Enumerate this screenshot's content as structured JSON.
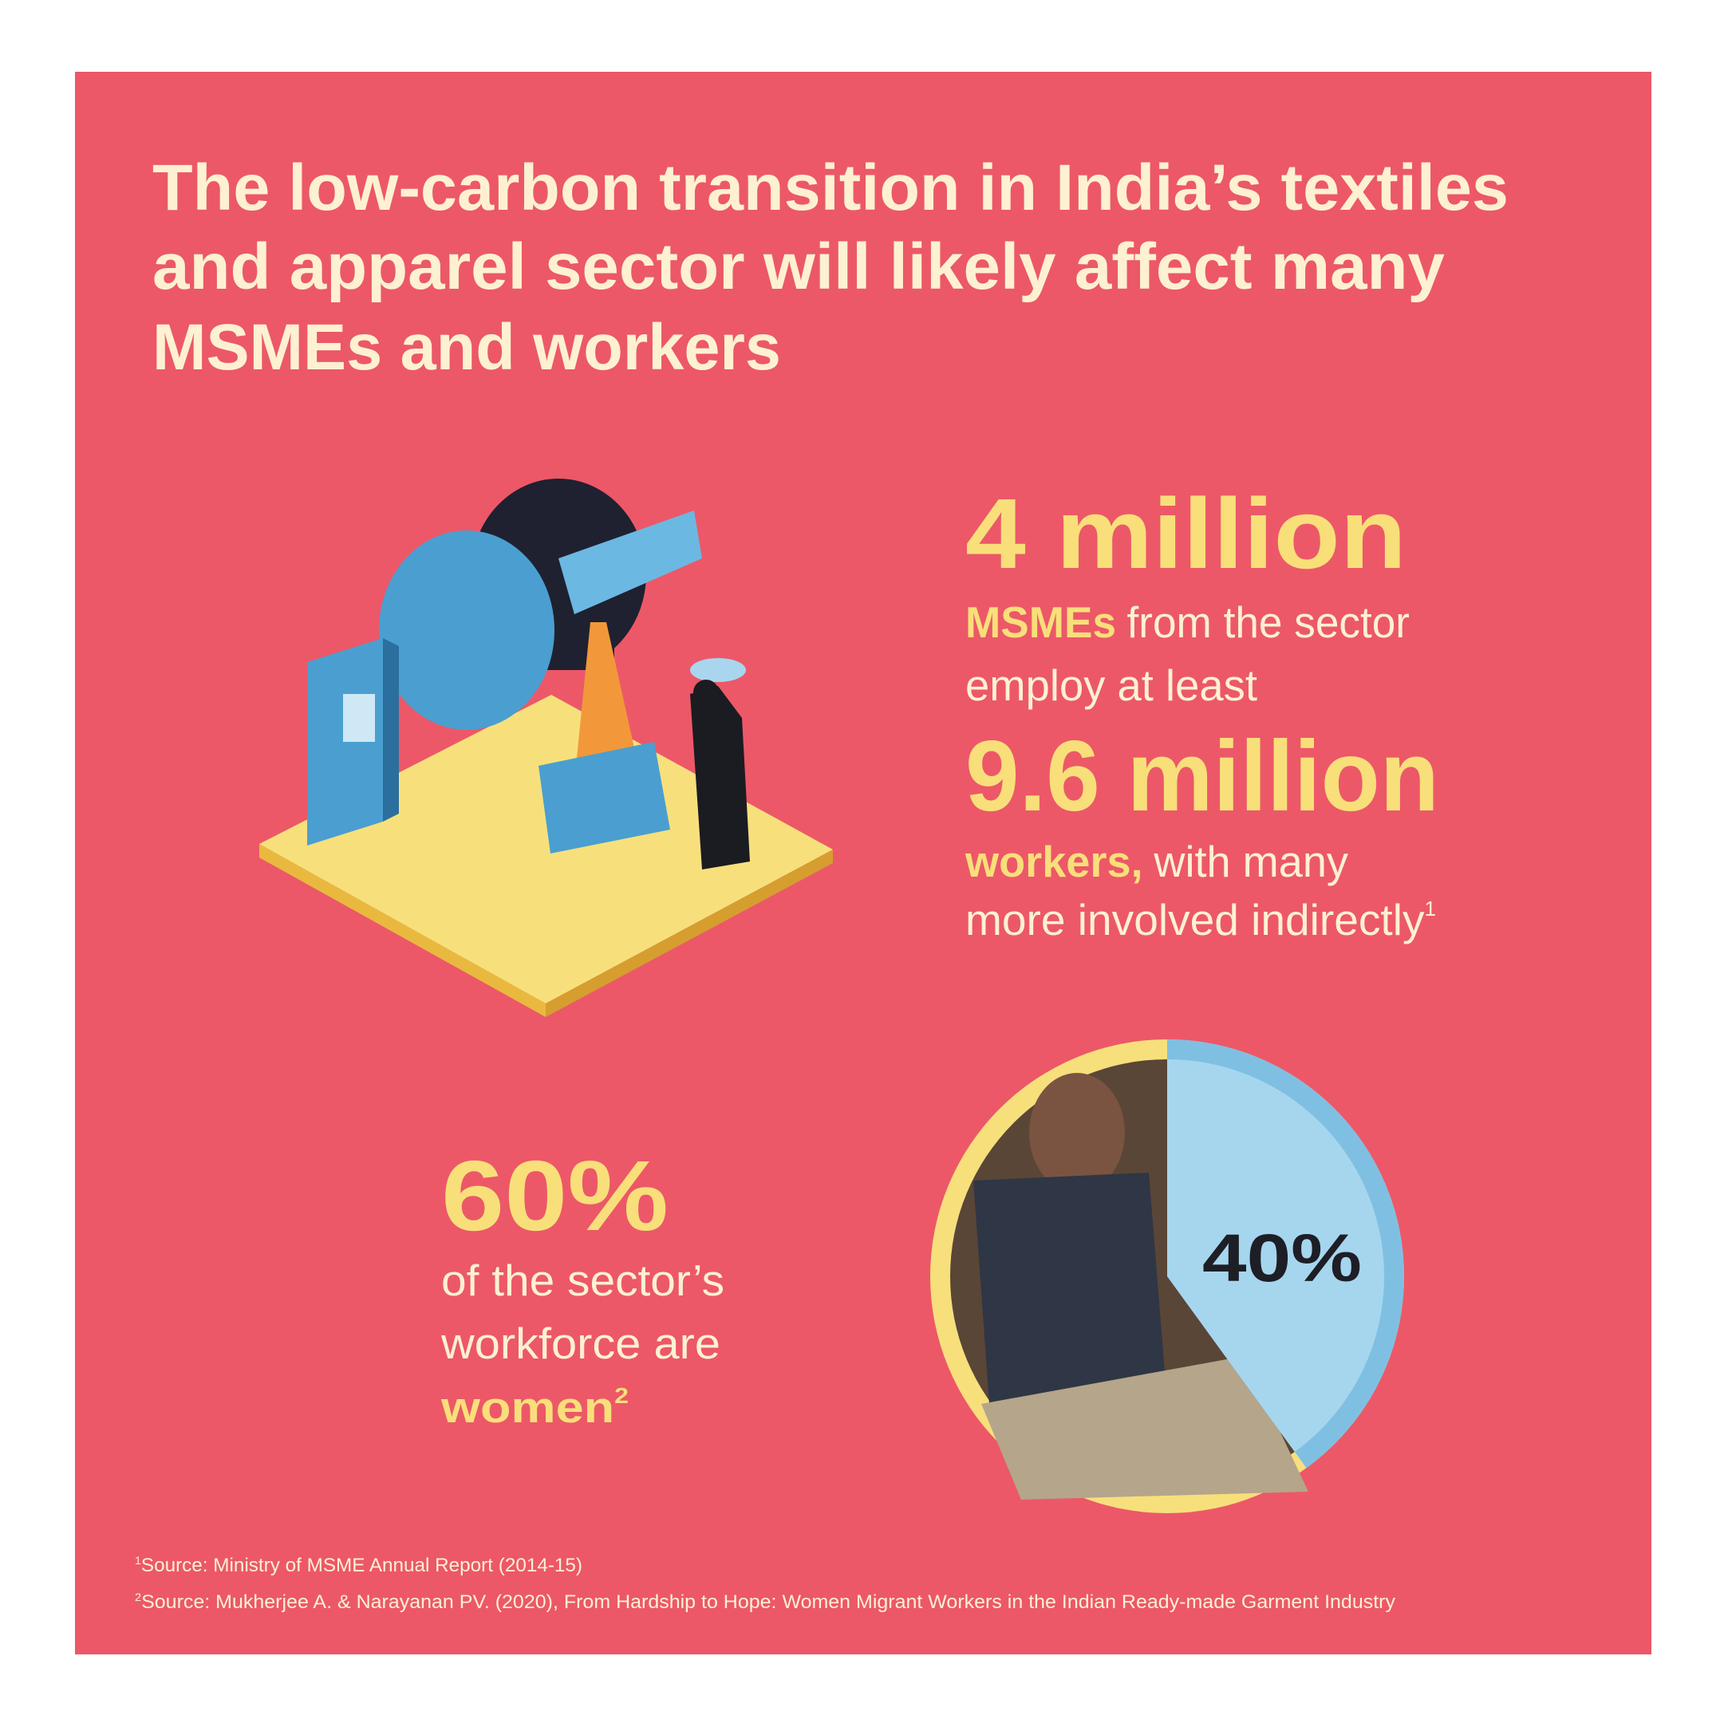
{
  "header": {
    "title_lines": [
      "The low-carbon transition in India’s textiles",
      "and apparel sector will likely affect many",
      "MSMEs and workers"
    ]
  },
  "msme_stat": {
    "figure": "4 million",
    "highlight": "MSMEs",
    "line1_rest": "from the sector",
    "line2": "employ at least"
  },
  "worker_stat": {
    "figure": "9.6 million",
    "highlight": "workers,",
    "line1_rest": "with many",
    "line2": "more involved indirectly",
    "footnote_ref": "1"
  },
  "women_stat": {
    "figure": "60%",
    "line1": "of the sector’s",
    "line2": "workforce are",
    "highlight": "women",
    "footnote_ref": "2"
  },
  "pie": {
    "value": 40,
    "label": "40%"
  },
  "footnotes": [
    {
      "ref": "1",
      "text": "Source: Ministry of MSME Annual Report (2014-15)"
    },
    {
      "ref": "2",
      "text": "Source: Mukherjee A. &  Narayanan PV. (2020), From Hardship to Hope: Women Migrant Workers in the Indian Ready-made Garment Industry"
    }
  ]
}
